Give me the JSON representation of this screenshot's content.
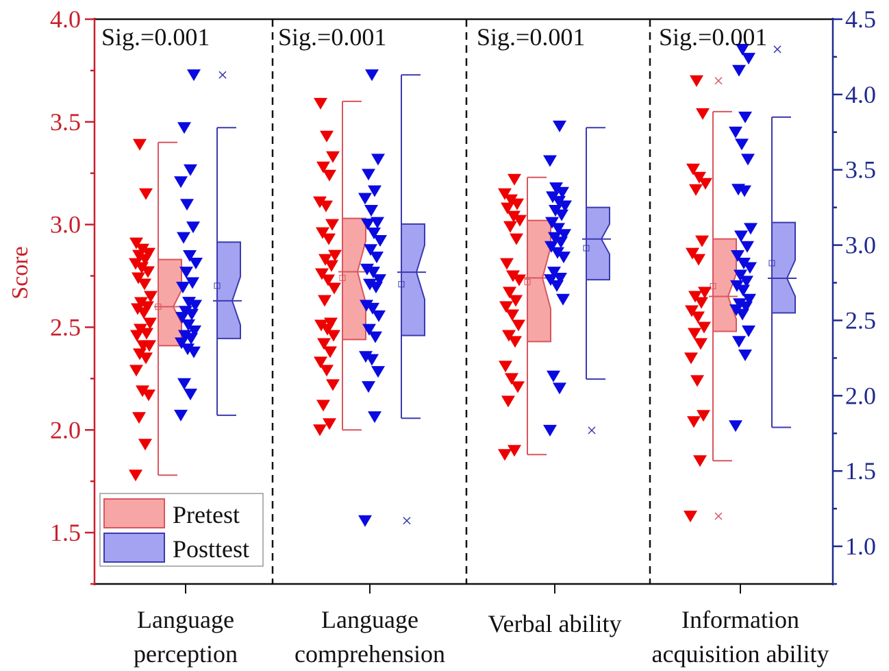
{
  "chart_data": {
    "type": "box",
    "title": "",
    "xlabel": "",
    "ylabel": "Score",
    "ylabel_right": "",
    "categories": [
      [
        "Language",
        "perception"
      ],
      [
        "Language",
        "comprehension"
      ],
      [
        "Verbal ability"
      ],
      [
        "Information",
        "acquisition ability"
      ]
    ],
    "annotations": [
      "Sig.=0.001",
      "Sig.=0.001",
      "Sig.=0.001",
      "Sig.=0.001"
    ],
    "y_left": {
      "min": 1.25,
      "max": 4.0,
      "ticks": [
        "1.5",
        "2.0",
        "2.5",
        "3.0",
        "3.5",
        "4.0"
      ],
      "minor_step": 0.25
    },
    "y_right": {
      "min": 0.75,
      "max": 4.5,
      "ticks": [
        "1.0",
        "1.5",
        "2.0",
        "2.5",
        "3.0",
        "3.5",
        "4.0",
        "4.5"
      ],
      "minor_step": 0.25
    },
    "legend": {
      "position": "bottom-left",
      "entries": [
        "Pretest",
        "Posttest"
      ]
    },
    "colors": {
      "pretest_fill": "#f7a6a6",
      "pretest_edge": "#d9555d",
      "pretest_points": "#ee0000",
      "posttest_fill": "#a3a3f2",
      "posttest_edge": "#3a3ab0",
      "posttest_points": "#0a0ae0",
      "left_axis": "#c8202a",
      "right_axis": "#1f2a8f"
    },
    "series": [
      {
        "name": "Pretest",
        "axis": "left",
        "boxes": [
          {
            "whisker_low": 1.78,
            "q1": 2.41,
            "median": 2.6,
            "mean": 2.6,
            "q3": 2.83,
            "whisker_high": 3.4,
            "notch_low": 2.52,
            "notch_high": 2.68,
            "outliers": []
          },
          {
            "whisker_low": 2.0,
            "q1": 2.44,
            "median": 2.77,
            "mean": 2.74,
            "q3": 3.03,
            "whisker_high": 3.6,
            "notch_low": 2.62,
            "notch_high": 2.92,
            "outliers": []
          },
          {
            "whisker_low": 1.88,
            "q1": 2.43,
            "median": 2.74,
            "mean": 2.72,
            "q3": 3.02,
            "whisker_high": 3.23,
            "notch_low": 2.59,
            "notch_high": 2.89,
            "outliers": []
          },
          {
            "whisker_low": 1.85,
            "q1": 2.48,
            "median": 2.65,
            "mean": 2.7,
            "q3": 2.93,
            "whisker_high": 3.55,
            "notch_low": 2.54,
            "notch_high": 2.76,
            "outliers": [
              1.58,
              3.7
            ]
          }
        ],
        "points": [
          [
            1.78,
            1.93,
            2.06,
            2.17,
            2.19,
            2.29,
            2.35,
            2.37,
            2.41,
            2.41,
            2.46,
            2.47,
            2.49,
            2.52,
            2.57,
            2.59,
            2.6,
            2.62,
            2.65,
            2.71,
            2.74,
            2.77,
            2.79,
            2.81,
            2.83,
            2.85,
            2.86,
            2.88,
            2.91,
            3.15,
            3.39
          ],
          [
            2.0,
            2.03,
            2.12,
            2.22,
            2.29,
            2.33,
            2.38,
            2.42,
            2.46,
            2.49,
            2.51,
            2.52,
            2.63,
            2.69,
            2.73,
            2.76,
            2.8,
            2.83,
            2.85,
            2.93,
            2.96,
            3.0,
            3.09,
            3.11,
            3.24,
            3.28,
            3.33,
            3.43,
            3.59
          ],
          [
            1.88,
            1.9,
            2.14,
            2.21,
            2.25,
            2.31,
            2.43,
            2.46,
            2.51,
            2.56,
            2.6,
            2.63,
            2.67,
            2.73,
            2.75,
            2.81,
            2.93,
            2.99,
            3.02,
            3.04,
            3.08,
            3.1,
            3.12,
            3.15,
            3.22
          ],
          [
            1.58,
            1.85,
            2.04,
            2.07,
            2.24,
            2.35,
            2.42,
            2.47,
            2.5,
            2.55,
            2.58,
            2.62,
            2.65,
            2.67,
            2.83,
            2.86,
            2.92,
            3.17,
            3.2,
            3.23,
            3.27,
            3.54,
            3.7
          ]
        ]
      },
      {
        "name": "Posttest",
        "axis": "right",
        "boxes": [
          {
            "whisker_low": 1.87,
            "q1": 2.38,
            "median": 2.63,
            "mean": 2.73,
            "q3": 3.02,
            "whisker_high": 3.78,
            "notch_low": 2.47,
            "notch_high": 2.79,
            "outliers": [
              4.13
            ]
          },
          {
            "whisker_low": 1.85,
            "q1": 2.4,
            "median": 2.82,
            "mean": 2.74,
            "q3": 3.14,
            "whisker_high": 4.13,
            "notch_low": 2.64,
            "notch_high": 3.0,
            "outliers": [
              1.17
            ]
          },
          {
            "whisker_low": 2.11,
            "q1": 2.77,
            "median": 3.04,
            "mean": 2.98,
            "q3": 3.25,
            "whisker_high": 3.78,
            "notch_low": 2.94,
            "notch_high": 3.14,
            "outliers": [
              1.77
            ]
          },
          {
            "whisker_low": 1.79,
            "q1": 2.55,
            "median": 2.78,
            "mean": 2.88,
            "q3": 3.15,
            "whisker_high": 3.85,
            "notch_low": 2.66,
            "notch_high": 2.9,
            "outliers": [
              4.3
            ]
          }
        ],
        "points": [
          [
            1.87,
            2.01,
            2.08,
            2.29,
            2.31,
            2.35,
            2.38,
            2.4,
            2.43,
            2.47,
            2.52,
            2.54,
            2.56,
            2.6,
            2.62,
            2.72,
            2.75,
            2.82,
            2.88,
            2.93,
            3.05,
            3.12,
            3.27,
            3.42,
            3.5,
            3.78,
            4.13
          ],
          [
            1.17,
            1.86,
            2.06,
            2.16,
            2.24,
            2.26,
            2.39,
            2.44,
            2.53,
            2.58,
            2.6,
            2.72,
            2.74,
            2.77,
            2.82,
            2.84,
            2.92,
            2.97,
            3.03,
            3.08,
            3.14,
            3.15,
            3.23,
            3.31,
            3.36,
            3.47,
            3.57,
            4.13
          ],
          [
            1.77,
            2.05,
            2.13,
            2.64,
            2.73,
            2.77,
            2.78,
            2.82,
            2.92,
            2.95,
            2.99,
            3.02,
            3.05,
            3.07,
            3.11,
            3.15,
            3.2,
            3.23,
            3.26,
            3.29,
            3.32,
            3.35,
            3.38,
            3.56,
            3.79
          ],
          [
            1.8,
            2.27,
            2.36,
            2.43,
            2.54,
            2.57,
            2.59,
            2.61,
            2.64,
            2.7,
            2.73,
            2.76,
            2.8,
            2.85,
            2.88,
            2.93,
            2.99,
            3.06,
            3.11,
            3.36,
            3.37,
            3.57,
            3.67,
            3.75,
            3.85,
            4.16,
            4.24,
            4.3
          ]
        ]
      }
    ]
  }
}
